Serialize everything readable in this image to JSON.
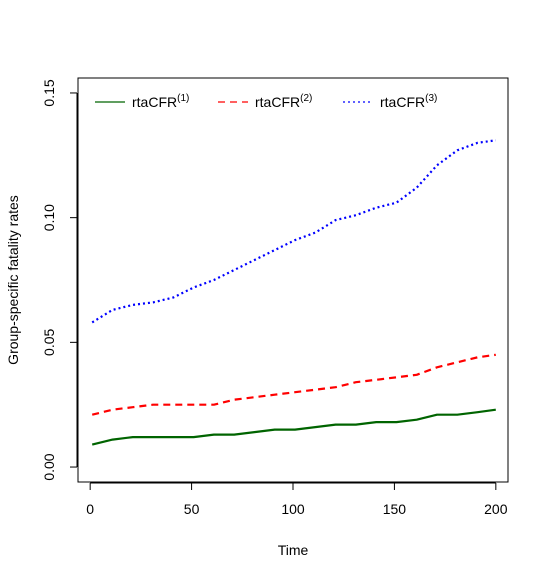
{
  "chart_data": {
    "type": "line",
    "title": "",
    "xlabel": "Time",
    "ylabel": "Group-specific fatality rates",
    "xlim": [
      -6,
      206
    ],
    "ylim": [
      -0.006,
      0.156
    ],
    "xticks": [
      0,
      50,
      100,
      150,
      200
    ],
    "xtick_labels": [
      "0",
      "50",
      "100",
      "150",
      "200"
    ],
    "yticks": [
      0.0,
      0.05,
      0.1,
      0.15
    ],
    "ytick_labels": [
      "0.00",
      "0.05",
      "0.10",
      "0.15"
    ],
    "grid": false,
    "legend_position": "top",
    "series": [
      {
        "name": "rtaCFR",
        "name_sup": "(1)",
        "color": "#006400",
        "dash": "solid",
        "x": [
          1,
          11,
          21,
          31,
          41,
          51,
          61,
          71,
          81,
          91,
          101,
          111,
          121,
          131,
          141,
          151,
          161,
          171,
          181,
          191,
          200
        ],
        "values": [
          0.009,
          0.011,
          0.012,
          0.012,
          0.012,
          0.012,
          0.013,
          0.013,
          0.014,
          0.015,
          0.015,
          0.016,
          0.017,
          0.017,
          0.018,
          0.018,
          0.019,
          0.021,
          0.021,
          0.022,
          0.023
        ]
      },
      {
        "name": "rtaCFR",
        "name_sup": "(2)",
        "color": "#ff0000",
        "dash": "dashed",
        "x": [
          1,
          11,
          21,
          31,
          41,
          51,
          61,
          71,
          81,
          91,
          101,
          111,
          121,
          131,
          141,
          151,
          161,
          171,
          181,
          191,
          200
        ],
        "values": [
          0.021,
          0.023,
          0.024,
          0.025,
          0.025,
          0.025,
          0.025,
          0.027,
          0.028,
          0.029,
          0.03,
          0.031,
          0.032,
          0.034,
          0.035,
          0.036,
          0.037,
          0.04,
          0.042,
          0.044,
          0.045
        ]
      },
      {
        "name": "rtaCFR",
        "name_sup": "(3)",
        "color": "#0000ff",
        "dash": "dotted",
        "x": [
          1,
          11,
          21,
          31,
          41,
          51,
          61,
          71,
          81,
          91,
          101,
          111,
          121,
          131,
          141,
          151,
          161,
          171,
          181,
          191,
          200
        ],
        "values": [
          0.058,
          0.063,
          0.065,
          0.066,
          0.068,
          0.072,
          0.075,
          0.079,
          0.083,
          0.087,
          0.091,
          0.094,
          0.099,
          0.101,
          0.104,
          0.106,
          0.112,
          0.121,
          0.127,
          0.13,
          0.131
        ]
      }
    ]
  }
}
